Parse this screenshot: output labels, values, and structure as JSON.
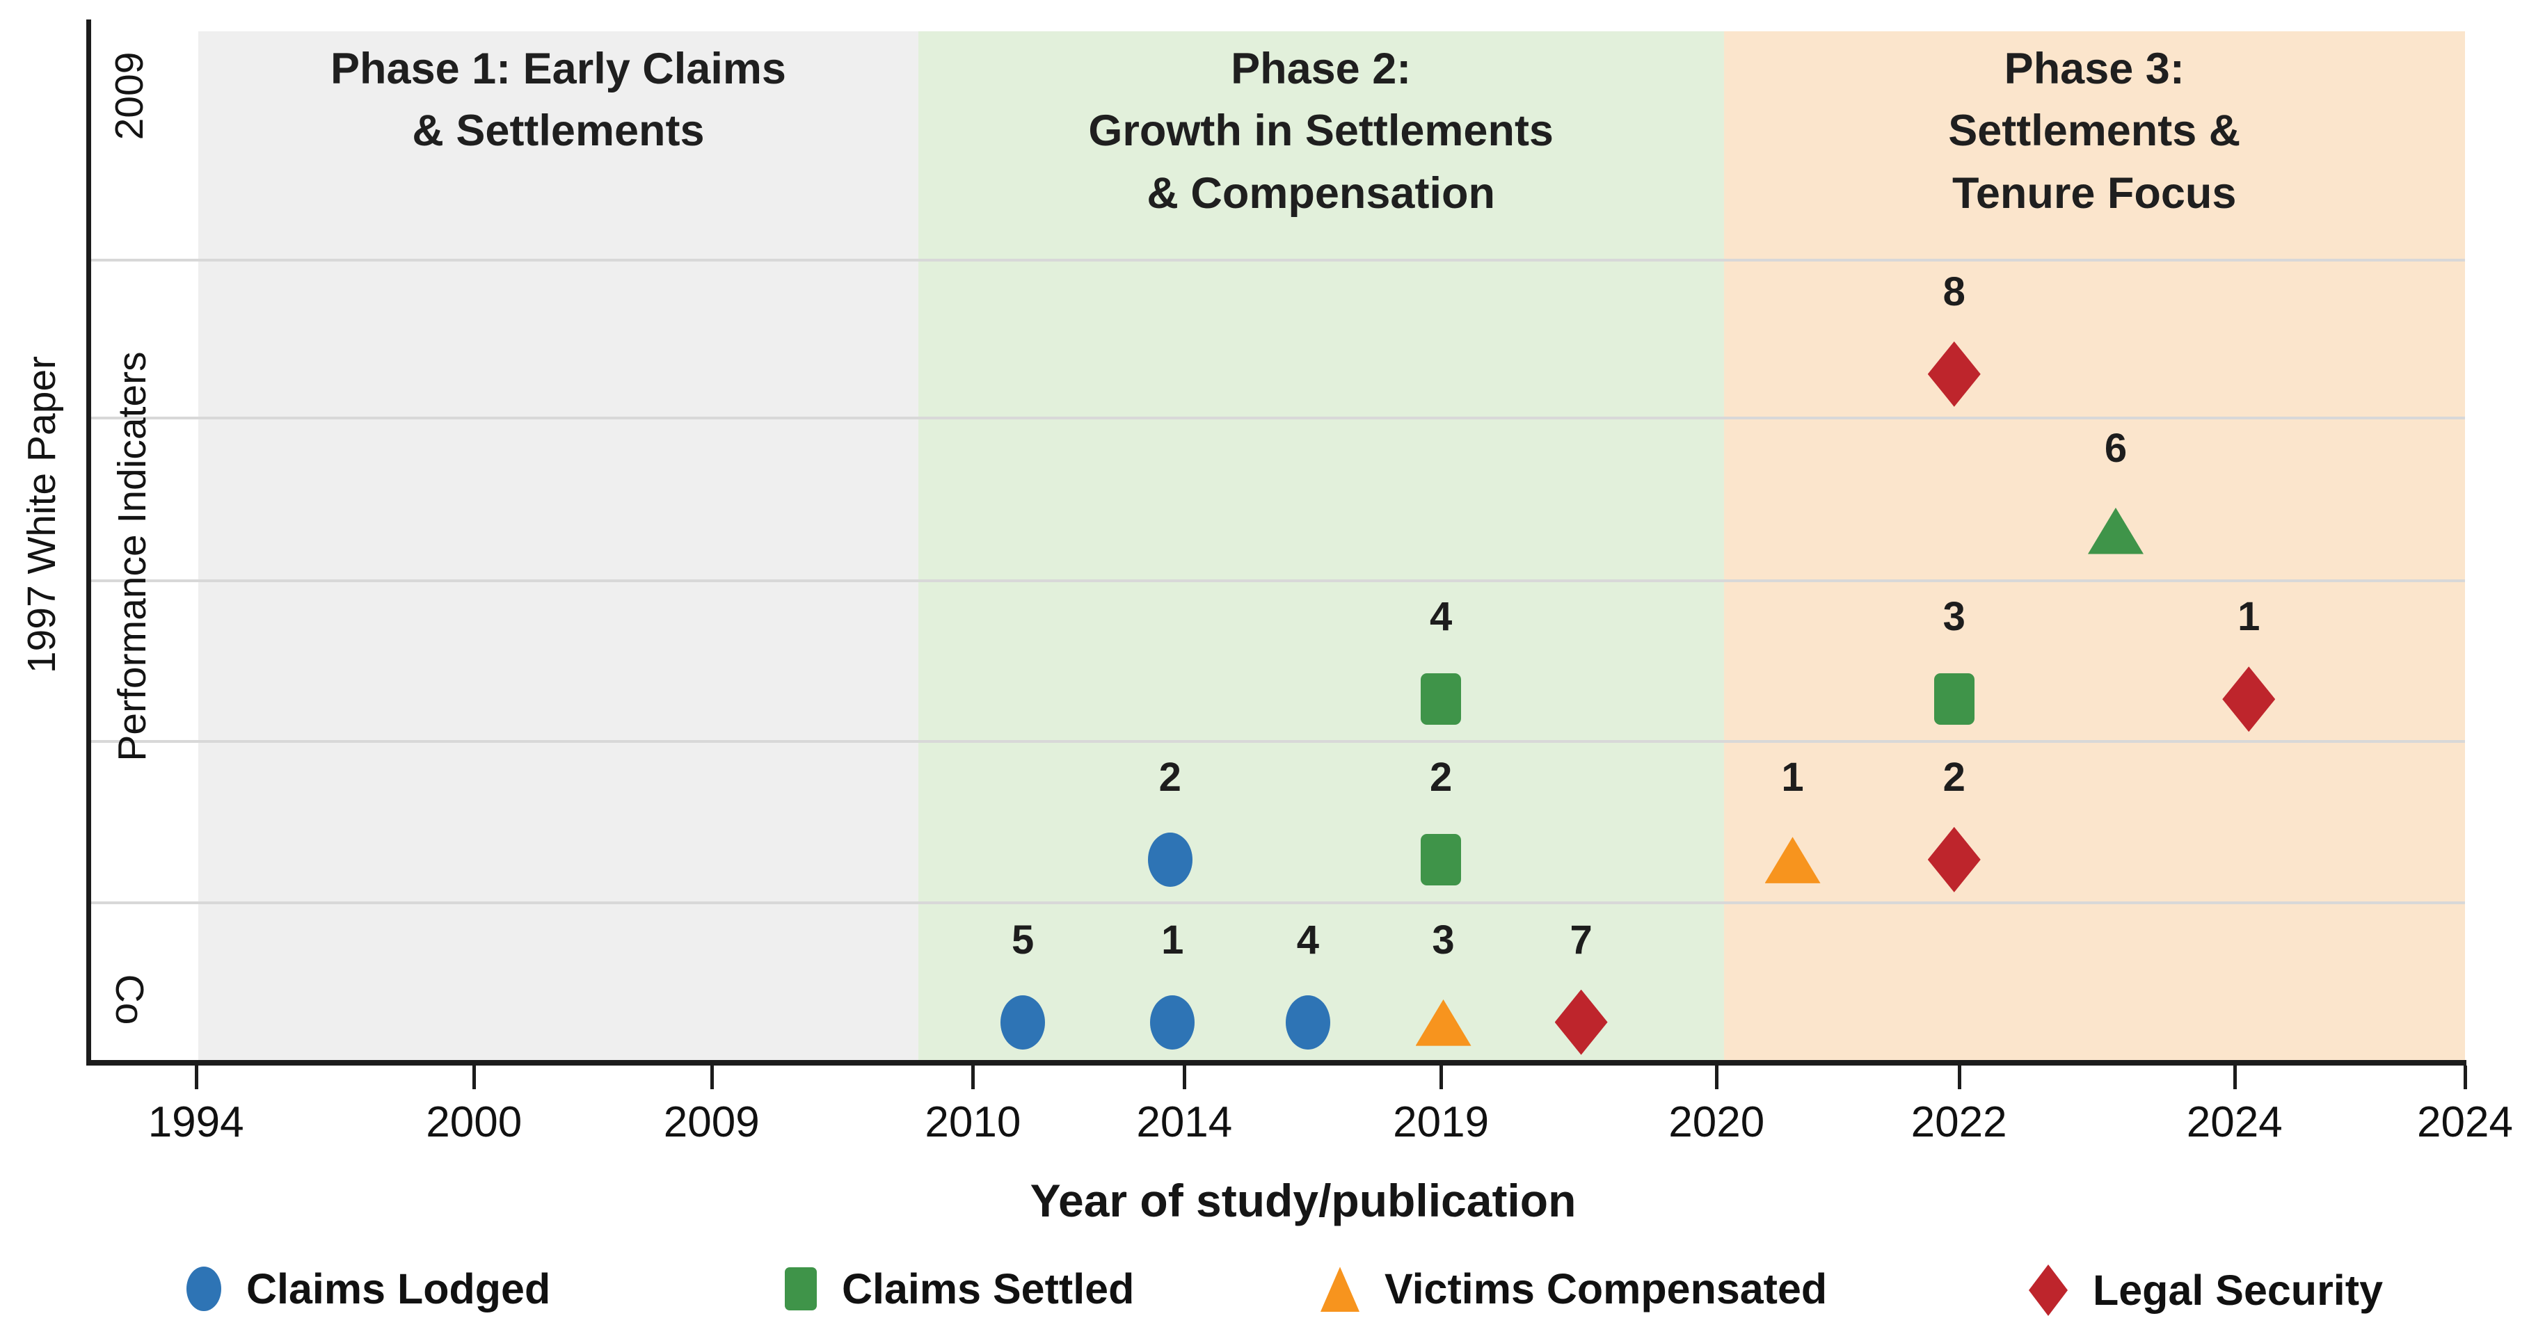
{
  "chart_data": {
    "type": "scatter",
    "description": "Timeline scatter of studies by phase: count labels above category markers, grouped in horizontal performance-indicator rows",
    "xlabel": "Year of study/publication",
    "x_ticks": [
      {
        "label": "1994",
        "pct": 4.5
      },
      {
        "label": "2000",
        "pct": 16.2
      },
      {
        "label": "2009",
        "pct": 26.2
      },
      {
        "label": "2010",
        "pct": 37.2
      },
      {
        "label": "2014",
        "pct": 46.1
      },
      {
        "label": "2019",
        "pct": 56.9
      },
      {
        "label": "2020",
        "pct": 68.5
      },
      {
        "label": "2022",
        "pct": 78.7
      },
      {
        "label": "2024",
        "pct": 90.3
      },
      {
        "label": "2024",
        "pct": 100
      }
    ],
    "y_axis_labels": {
      "outer_left": "1997 White Paper",
      "row_top": "2009",
      "rows_mid": "Performance Indicaters",
      "row_bottom": "Co"
    },
    "phases": [
      {
        "id": "phase-1",
        "title": "Phase 1: Early Claims\n& Settlements",
        "bg": "#efefef",
        "left_pct": 4.6,
        "right_pct": 34.9
      },
      {
        "id": "phase-2",
        "title": "Phase 2:\nGrowth in Settlements\n& Compensation",
        "bg": "#e2f0db",
        "left_pct": 34.9,
        "right_pct": 68.8
      },
      {
        "id": "phase-3",
        "title": "Phase 3:\nSettlements & Tenure Focus",
        "bg": "#fbe5cc",
        "left_pct": 68.8,
        "right_pct": 100
      }
    ],
    "gridlines_pct": [
      22.8,
      38.0,
      53.6,
      69.0,
      84.5
    ],
    "row_centers_pct": {
      "1": 33.9,
      "2": 48.9,
      "3": 65.1,
      "4": 80.5,
      "5": 96.1
    },
    "series_colors": {
      "claims_lodged": "#2e74b5",
      "claims_settled": "#3f9449",
      "victims_compensated": "#f7941e",
      "legal_security": "#be252c"
    },
    "points": [
      {
        "count": "8",
        "series": "legal_security",
        "shape": "diamond",
        "x_pct": 78.5,
        "row": "1",
        "year": "2022"
      },
      {
        "count": "6",
        "series": "claims_settled",
        "shape": "triangle",
        "x_pct": 85.3,
        "row": "2",
        "year": "2023"
      },
      {
        "count": "4",
        "series": "claims_settled",
        "shape": "square",
        "x_pct": 56.9,
        "row": "3",
        "year": "2019"
      },
      {
        "count": "3",
        "series": "claims_settled",
        "shape": "square",
        "x_pct": 78.5,
        "row": "3",
        "year": "2022"
      },
      {
        "count": "1",
        "series": "legal_security",
        "shape": "diamond",
        "x_pct": 90.9,
        "row": "3",
        "year": "2024"
      },
      {
        "count": "2",
        "series": "claims_lodged",
        "shape": "circle",
        "x_pct": 45.5,
        "row": "4",
        "year": "2014"
      },
      {
        "count": "2",
        "series": "claims_settled",
        "shape": "square",
        "x_pct": 56.9,
        "row": "4",
        "year": "2019"
      },
      {
        "count": "1",
        "series": "victims_compensated",
        "shape": "triangle",
        "x_pct": 71.7,
        "row": "4",
        "year": "2021"
      },
      {
        "count": "2",
        "series": "legal_security",
        "shape": "diamond",
        "x_pct": 78.5,
        "row": "4",
        "year": "2022"
      },
      {
        "count": "5",
        "series": "claims_lodged",
        "shape": "circle",
        "x_pct": 39.3,
        "row": "5",
        "year": "2011"
      },
      {
        "count": "1",
        "series": "claims_lodged",
        "shape": "circle",
        "x_pct": 45.6,
        "row": "5",
        "year": "2014"
      },
      {
        "count": "4",
        "series": "claims_lodged",
        "shape": "circle",
        "x_pct": 51.3,
        "row": "5",
        "year": "2016"
      },
      {
        "count": "3",
        "series": "victims_compensated",
        "shape": "triangle",
        "x_pct": 57.0,
        "row": "5",
        "year": "2019"
      },
      {
        "count": "7",
        "series": "legal_security",
        "shape": "diamond",
        "x_pct": 62.8,
        "row": "5",
        "year": "2019"
      }
    ],
    "legend": [
      {
        "label": "Claims Lodged",
        "series": "claims_lodged",
        "shape": "circle",
        "left": 268
      },
      {
        "label": "Claims Settled",
        "series": "claims_settled",
        "shape": "square",
        "left": 1128
      },
      {
        "label": "Victims Compensated",
        "series": "victims_compensated",
        "shape": "triangle",
        "left": 1898
      },
      {
        "label": "Legal Security",
        "series": "legal_security",
        "shape": "diamond",
        "left": 2916
      }
    ]
  }
}
